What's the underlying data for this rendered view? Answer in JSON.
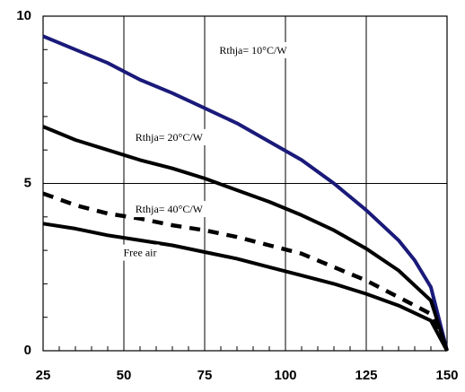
{
  "chart_data": {
    "type": "line",
    "title": "",
    "xlabel": "",
    "ylabel": "",
    "xlim": [
      25,
      150
    ],
    "ylim": [
      0,
      10
    ],
    "x_ticks": [
      25,
      50,
      75,
      100,
      125,
      150
    ],
    "y_ticks": [
      0,
      5,
      10
    ],
    "x_tick_labels": [
      "25",
      "50",
      "75",
      "100",
      "125",
      "150"
    ],
    "y_tick_labels": [
      "0",
      "5",
      "10"
    ],
    "grid": true,
    "legend": "none",
    "series": [
      {
        "name": "Rthja= 10°C/W",
        "color": "#1a1a7a",
        "style": "solid",
        "points": [
          [
            25,
            9.4
          ],
          [
            35,
            9.0
          ],
          [
            45,
            8.6
          ],
          [
            55,
            8.1
          ],
          [
            65,
            7.7
          ],
          [
            75,
            7.25
          ],
          [
            85,
            6.8
          ],
          [
            95,
            6.25
          ],
          [
            105,
            5.7
          ],
          [
            115,
            5.0
          ],
          [
            125,
            4.2
          ],
          [
            135,
            3.3
          ],
          [
            140,
            2.7
          ],
          [
            145,
            1.9
          ],
          [
            150,
            0
          ]
        ]
      },
      {
        "name": "Rthja= 20°C/W",
        "color": "#000000",
        "style": "solid",
        "points": [
          [
            25,
            6.7
          ],
          [
            35,
            6.3
          ],
          [
            45,
            6.0
          ],
          [
            55,
            5.7
          ],
          [
            65,
            5.45
          ],
          [
            75,
            5.15
          ],
          [
            85,
            4.8
          ],
          [
            95,
            4.45
          ],
          [
            105,
            4.05
          ],
          [
            115,
            3.6
          ],
          [
            125,
            3.05
          ],
          [
            135,
            2.4
          ],
          [
            145,
            1.5
          ],
          [
            150,
            0
          ]
        ]
      },
      {
        "name": "Rthja= 40°C/W",
        "color": "#000000",
        "style": "dashed",
        "points": [
          [
            25,
            4.7
          ],
          [
            35,
            4.35
          ],
          [
            45,
            4.1
          ],
          [
            55,
            3.95
          ],
          [
            65,
            3.75
          ],
          [
            75,
            3.6
          ],
          [
            85,
            3.4
          ],
          [
            95,
            3.15
          ],
          [
            105,
            2.9
          ],
          [
            115,
            2.5
          ],
          [
            125,
            2.1
          ],
          [
            135,
            1.6
          ],
          [
            145,
            1.1
          ],
          [
            150,
            0
          ]
        ]
      },
      {
        "name": "Free air",
        "color": "#000000",
        "style": "solid",
        "points": [
          [
            25,
            3.8
          ],
          [
            35,
            3.65
          ],
          [
            45,
            3.45
          ],
          [
            55,
            3.3
          ],
          [
            65,
            3.15
          ],
          [
            75,
            2.95
          ],
          [
            85,
            2.75
          ],
          [
            95,
            2.5
          ],
          [
            105,
            2.25
          ],
          [
            115,
            2.0
          ],
          [
            125,
            1.7
          ],
          [
            135,
            1.35
          ],
          [
            145,
            0.9
          ],
          [
            150,
            0
          ]
        ]
      }
    ],
    "annotations": [
      {
        "text": "Rthja= 10°C/W",
        "x": 90,
        "y": 8.95,
        "series": 0
      },
      {
        "text": "Rthja= 20°C/W",
        "x": 64,
        "y": 6.35,
        "series": 1
      },
      {
        "text": "Rthja= 40°C/W",
        "x": 64,
        "y": 4.2,
        "series": 2
      },
      {
        "text": "Free air",
        "x": 55,
        "y": 2.9,
        "series": 3
      }
    ]
  }
}
